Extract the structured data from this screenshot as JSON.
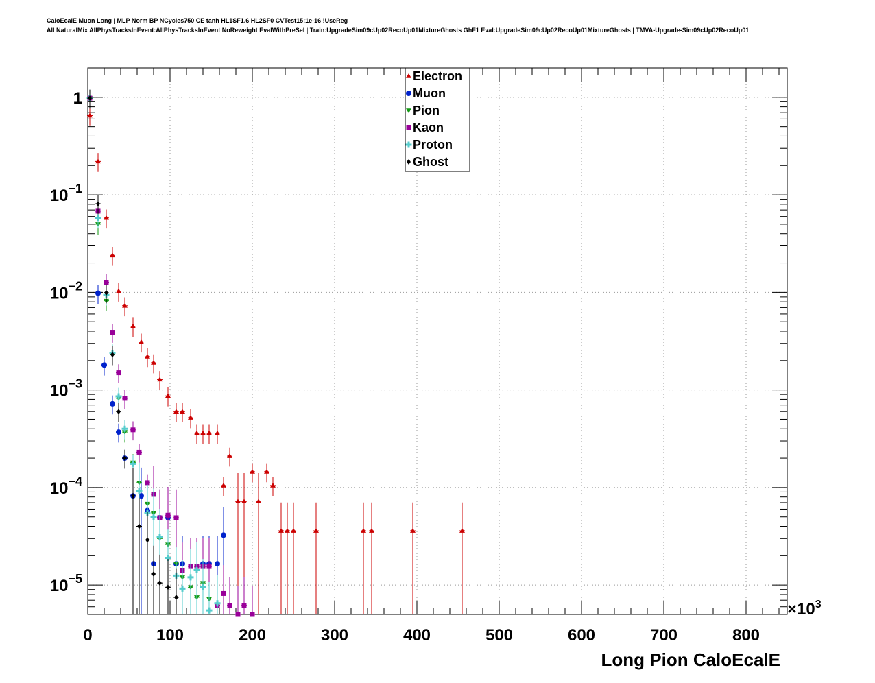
{
  "titles": {
    "line1": "CaloEcalE Muon Long | MLP Norm BP NCycles750 CE tanh HL1SF1.6 HL2SF0 CVTest15:1e-16 !UseReg",
    "line2": "All NaturalMix AllPhysTracksInEvent:AllPhysTracksInEvent NoReweight EvalWithPreSel | Train:UpgradeSim09cUp02RecoUp01MixtureGhosts GhF1 Eval:UpgradeSim09cUp02RecoUp01MixtureGhosts | TMVA-Upgrade-Sim09cUp02RecoUp01"
  },
  "chart_data": {
    "type": "scatter",
    "xlabel": "Long Pion CaloEcalE",
    "ylabel": "",
    "x_multiplier": "×10³",
    "xlim": [
      0,
      850
    ],
    "ylim": [
      5e-06,
      2
    ],
    "yscale": "log",
    "grid": true,
    "legend_position": "top-center",
    "x_ticks": [
      0,
      100,
      200,
      300,
      400,
      500,
      600,
      700,
      800
    ],
    "x_tick_labels": [
      "0",
      "100",
      "200",
      "300",
      "400",
      "500",
      "600",
      "700",
      "800"
    ],
    "y_ticks": [
      1e-05,
      0.0001,
      0.001,
      0.01,
      0.1,
      1
    ],
    "y_tick_labels": [
      {
        "base": "10",
        "exp": "−5"
      },
      {
        "base": "10",
        "exp": "−4"
      },
      {
        "base": "10",
        "exp": "−3"
      },
      {
        "base": "10",
        "exp": "−2"
      },
      {
        "base": "10",
        "exp": "−1"
      },
      {
        "base": "1",
        "exp": ""
      }
    ],
    "series": [
      {
        "name": "Electron",
        "color": "#cc0000",
        "marker": "triangle-up",
        "points": [
          [
            2.5,
            0.65
          ],
          [
            12.5,
            0.22
          ],
          [
            22.5,
            0.058
          ],
          [
            30,
            0.024
          ],
          [
            37.5,
            0.0103
          ],
          [
            45,
            0.0073
          ],
          [
            55,
            0.0045
          ],
          [
            65,
            0.0031
          ],
          [
            72.5,
            0.0022
          ],
          [
            80,
            0.0019
          ],
          [
            87.5,
            0.00128
          ],
          [
            97.5,
            0.00087
          ],
          [
            107.5,
            0.0006
          ],
          [
            115,
            0.0006
          ],
          [
            125,
            0.00052
          ],
          [
            132.5,
            0.00036
          ],
          [
            140,
            0.00036
          ],
          [
            147.5,
            0.00036
          ],
          [
            157.5,
            0.00036
          ],
          [
            165,
            0.000105
          ],
          [
            172.5,
            0.00021
          ],
          [
            182.5,
            7.2e-05
          ],
          [
            190,
            7.2e-05
          ],
          [
            200,
            0.000145
          ],
          [
            207.5,
            7.2e-05
          ],
          [
            217.5,
            0.000145
          ],
          [
            225,
            0.000105
          ],
          [
            235,
            3.6e-05
          ],
          [
            242.5,
            3.6e-05
          ],
          [
            250,
            3.6e-05
          ],
          [
            277.5,
            3.6e-05
          ],
          [
            335,
            3.6e-05
          ],
          [
            345,
            3.6e-05
          ],
          [
            395,
            3.6e-05
          ],
          [
            455,
            3.6e-05
          ]
        ]
      },
      {
        "name": "Muon",
        "color": "#0022cc",
        "marker": "circle",
        "points": [
          [
            2.5,
            0.98
          ],
          [
            12.5,
            0.0098
          ],
          [
            20,
            0.0018
          ],
          [
            30,
            0.00072
          ],
          [
            37.5,
            0.00037
          ],
          [
            45,
            0.0002
          ],
          [
            55,
            8.2e-05
          ],
          [
            65,
            8.2e-05
          ],
          [
            72.5,
            5.8e-05
          ],
          [
            80,
            1.65e-05
          ],
          [
            87.5,
            4.9e-05
          ],
          [
            97.5,
            4.9e-05
          ],
          [
            107.5,
            1.65e-05
          ],
          [
            115,
            1.65e-05
          ],
          [
            140,
            1.65e-05
          ],
          [
            147.5,
            1.65e-05
          ],
          [
            157.5,
            1.65e-05
          ],
          [
            165,
            3.25e-05
          ]
        ]
      },
      {
        "name": "Pion",
        "color": "#119911",
        "marker": "triangle-down",
        "points": [
          [
            2.5,
            0.98
          ],
          [
            12.5,
            0.05
          ],
          [
            22.5,
            0.0082
          ],
          [
            30,
            0.0023
          ],
          [
            37.5,
            0.00082
          ],
          [
            45,
            0.00037
          ],
          [
            55,
            0.00018
          ],
          [
            62.5,
            0.000112
          ],
          [
            72.5,
            6.8e-05
          ],
          [
            80,
            5.5e-05
          ],
          [
            87.5,
            3e-05
          ],
          [
            97.5,
            2.6e-05
          ],
          [
            107.5,
            1.65e-05
          ],
          [
            115,
            1.2e-05
          ],
          [
            125,
            9.5e-06
          ],
          [
            132.5,
            7.5e-06
          ],
          [
            140,
            1.05e-05
          ],
          [
            147.5,
            7.2e-06
          ],
          [
            157.5,
            6.2e-06
          ]
        ]
      },
      {
        "name": "Kaon",
        "color": "#990099",
        "marker": "square",
        "points": [
          [
            2.5,
            0.98
          ],
          [
            12.5,
            0.068
          ],
          [
            22.5,
            0.0127
          ],
          [
            30,
            0.0039
          ],
          [
            37.5,
            0.0015
          ],
          [
            45,
            0.00082
          ],
          [
            55,
            0.00039
          ],
          [
            62.5,
            0.00023
          ],
          [
            72.5,
            0.000112
          ],
          [
            80,
            8.5e-05
          ],
          [
            87.5,
            4.9e-05
          ],
          [
            97.5,
            5.2e-05
          ],
          [
            107.5,
            4.9e-05
          ],
          [
            115,
            1.4e-05
          ],
          [
            125,
            1.55e-05
          ],
          [
            132.5,
            1.55e-05
          ],
          [
            140,
            1.55e-05
          ],
          [
            147.5,
            1.55e-05
          ],
          [
            157.5,
            6.2e-06
          ],
          [
            165,
            8.2e-06
          ],
          [
            172.5,
            6.2e-06
          ],
          [
            182.5,
            5e-06
          ],
          [
            190,
            6.2e-06
          ],
          [
            200,
            5e-06
          ]
        ]
      },
      {
        "name": "Proton",
        "color": "#55cccc",
        "marker": "cross",
        "points": [
          [
            2.5,
            0.98
          ],
          [
            12.5,
            0.058
          ],
          [
            22.5,
            0.0094
          ],
          [
            30,
            0.0024
          ],
          [
            37.5,
            0.00086
          ],
          [
            45,
            0.0004
          ],
          [
            55,
            0.000175
          ],
          [
            62.5,
            9.2e-05
          ],
          [
            72.5,
            5.5e-05
          ],
          [
            80,
            5e-05
          ],
          [
            87.5,
            3.1e-05
          ],
          [
            97.5,
            1.9e-05
          ],
          [
            107.5,
            1.25e-05
          ],
          [
            115,
            9.2e-06
          ],
          [
            125,
            1.2e-05
          ],
          [
            132.5,
            1.42e-05
          ],
          [
            140,
            9.5e-06
          ],
          [
            147.5,
            5.5e-06
          ],
          [
            157.5,
            6.5e-06
          ]
        ]
      },
      {
        "name": "Ghost",
        "color": "#000000",
        "marker": "diamond",
        "points": [
          [
            2.5,
            0.98
          ],
          [
            12.5,
            0.081
          ],
          [
            22.5,
            0.0099
          ],
          [
            30,
            0.0023
          ],
          [
            37.5,
            0.0006
          ],
          [
            45,
            0.0002
          ],
          [
            55,
            8.2e-05
          ],
          [
            62.5,
            4e-05
          ],
          [
            72.5,
            2.9e-05
          ],
          [
            80,
            1.3e-05
          ],
          [
            87.5,
            1.05e-05
          ],
          [
            97.5,
            9.5e-06
          ],
          [
            107.5,
            7.5e-06
          ]
        ]
      }
    ]
  }
}
